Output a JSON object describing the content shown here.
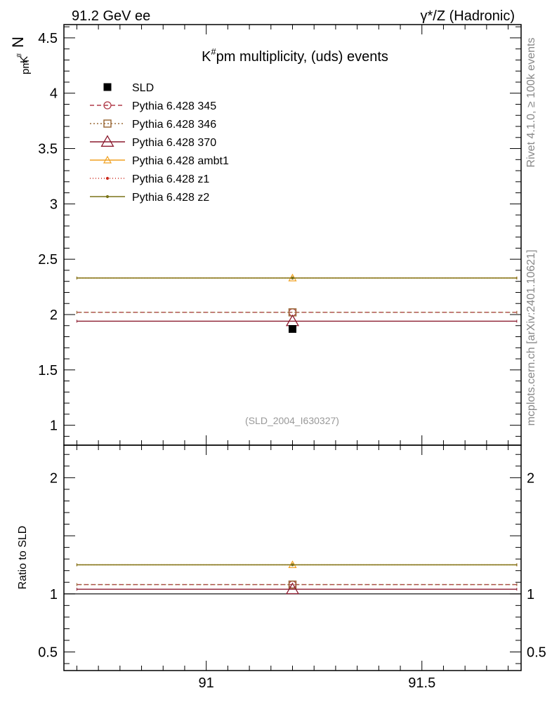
{
  "header": {
    "left": "91.2 GeV ee",
    "right": "γ*/Z (Hadronic)"
  },
  "side_labels": {
    "rivet": "Rivet 4.1.0, ≥ 100k events",
    "mcplots": "mcplots.cern.ch [arXiv:2401.10621]"
  },
  "chart_data": {
    "type": "line",
    "title": "K#pm multiplicity, (uds) events",
    "title_base": "K",
    "title_sup": "#",
    "title_rest": "pm multiplicity, (uds) events",
    "ylabel_main": "N",
    "ylabel_sub": "K",
    "ylabel_subsup": "#",
    "ylabel_subsub": "pm",
    "ylabel_ratio": "Ratio to SLD",
    "analysis_tag": "(SLD_2004_I630327)",
    "xlim": [
      90.67,
      91.73
    ],
    "ylim_main": [
      0.82,
      4.62
    ],
    "ylim_ratio": [
      0.34,
      2.28
    ],
    "x_ticks": [
      {
        "v": 91,
        "label": "91"
      },
      {
        "v": 91.5,
        "label": "91.5"
      }
    ],
    "y_ticks_main": [
      {
        "v": 1,
        "label": "1"
      },
      {
        "v": 1.5,
        "label": "1.5"
      },
      {
        "v": 2,
        "label": "2"
      },
      {
        "v": 2.5,
        "label": "2.5"
      },
      {
        "v": 3,
        "label": "3"
      },
      {
        "v": 3.5,
        "label": "3.5"
      },
      {
        "v": 4,
        "label": "4"
      },
      {
        "v": 4.5,
        "label": "4.5"
      }
    ],
    "y_ticks_ratio": [
      {
        "v": 0.5,
        "label": "0.5"
      },
      {
        "v": 1,
        "label": "1"
      },
      {
        "v": 2,
        "label": "2"
      }
    ],
    "data": {
      "name": "SLD",
      "x": 91.2,
      "y": 1.87,
      "ratio": 1.0
    },
    "series": [
      {
        "name": "Pythia 6.428 345",
        "x": 91.2,
        "y": 2.02,
        "ratio": 1.08,
        "color": "#b03a48",
        "dash": "6,4",
        "marker": "circle"
      },
      {
        "name": "Pythia 6.428 346",
        "x": 91.2,
        "y": 2.02,
        "ratio": 1.08,
        "color": "#9c6b3a",
        "dash": "2,3",
        "marker": "square"
      },
      {
        "name": "Pythia 6.428 370",
        "x": 91.2,
        "y": 1.94,
        "ratio": 1.04,
        "color": "#8b1a2e",
        "dash": "",
        "marker": "triangle"
      },
      {
        "name": "Pythia 6.428 ambt1",
        "x": 91.2,
        "y": 2.33,
        "ratio": 1.25,
        "color": "#f0a020",
        "dash": "",
        "marker": "triangle-small"
      },
      {
        "name": "Pythia 6.428 z1",
        "x": 91.2,
        "y": 2.33,
        "ratio": 1.25,
        "color": "#cc2a1e",
        "dash": "1,3",
        "marker": "dot"
      },
      {
        "name": "Pythia 6.428 z2",
        "x": 91.2,
        "y": 2.33,
        "ratio": 1.25,
        "color": "#7a7418",
        "dash": "",
        "marker": "dot"
      }
    ]
  }
}
